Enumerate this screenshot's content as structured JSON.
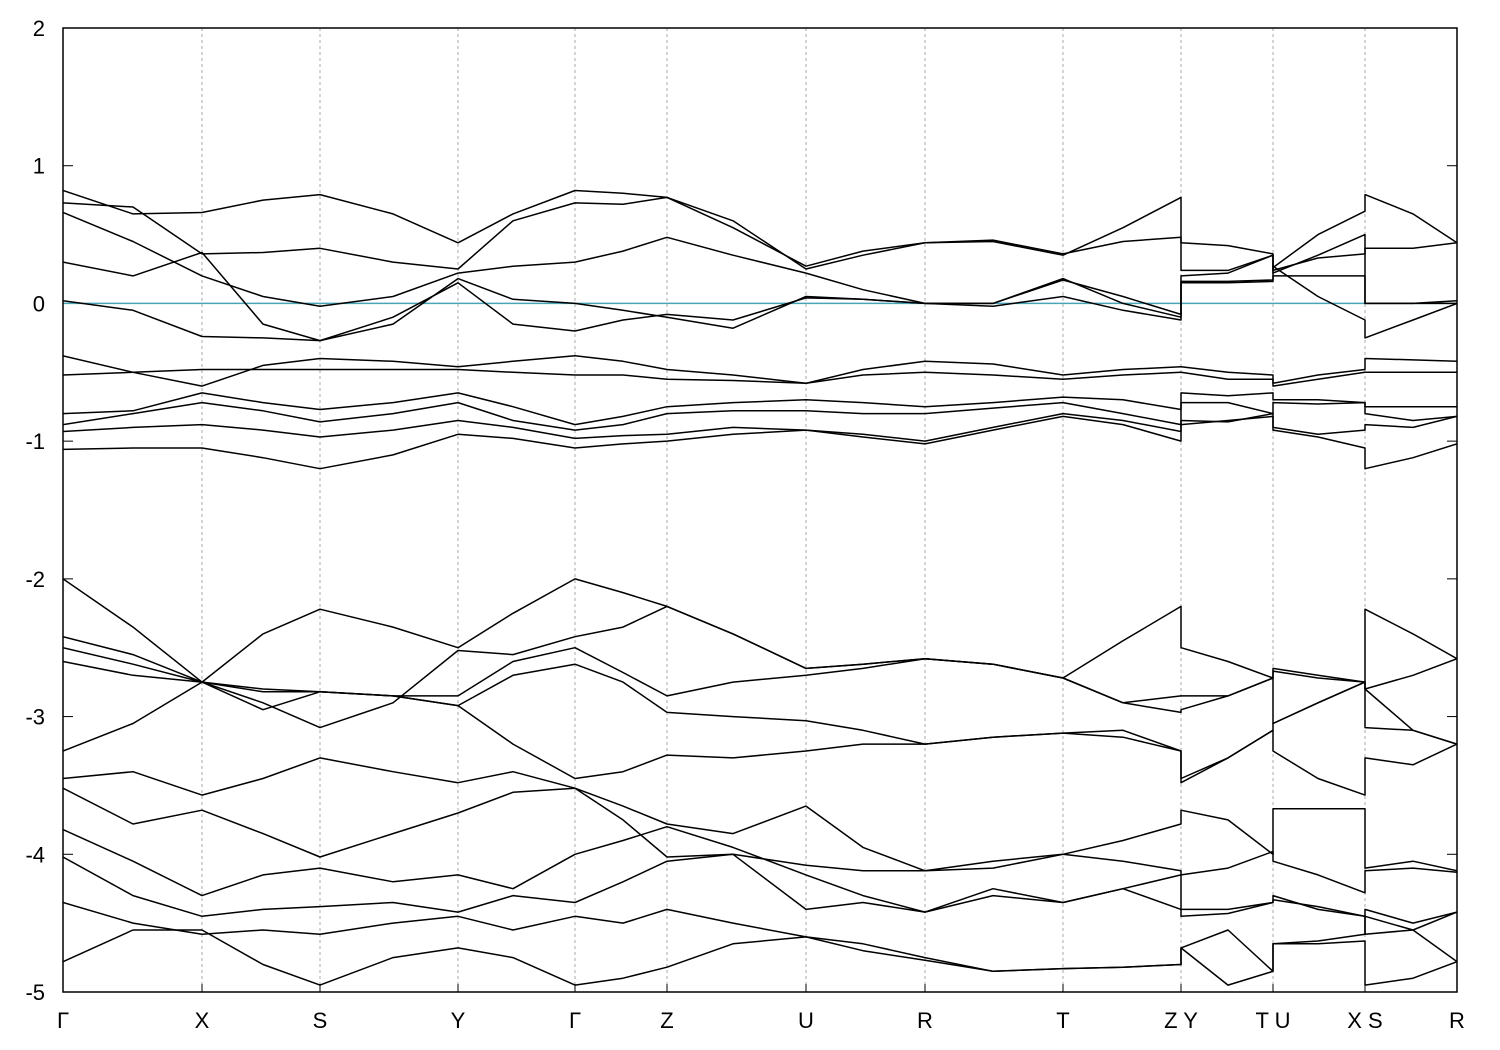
{
  "chart_data": {
    "type": "line",
    "color": "#000000",
    "grid": true,
    "hline": {
      "value": 0,
      "color": "#4aa3b8"
    },
    "xlim": [
      0,
      13.94
    ],
    "xticks": [
      {
        "value": 0,
        "label": "Γ"
      },
      {
        "value": 1.39,
        "label": "X"
      },
      {
        "value": 2.57,
        "label": "S"
      },
      {
        "value": 3.95,
        "label": "Y"
      },
      {
        "value": 5.12,
        "label": "Γ"
      },
      {
        "value": 6.04,
        "label": "Z"
      },
      {
        "value": 7.43,
        "label": "U"
      },
      {
        "value": 8.62,
        "label": "R"
      },
      {
        "value": 10.0,
        "label": "T"
      },
      {
        "value": 11.18,
        "label": "Z Y"
      },
      {
        "value": 12.1,
        "label": "T U"
      },
      {
        "value": 13.02,
        "label": "X S"
      },
      {
        "value": 13.94,
        "label": "R"
      }
    ],
    "ylim": [
      -5,
      2
    ],
    "yticks": [
      -5,
      -4,
      -3,
      -2,
      -1,
      0,
      1,
      2
    ],
    "x": [
      0,
      0.7,
      1.39,
      2.0,
      2.57,
      3.3,
      3.95,
      4.5,
      5.12,
      5.6,
      6.04,
      6.7,
      7.43,
      8.0,
      8.62,
      9.3,
      10.0,
      10.6,
      11.18,
      11.18,
      11.65,
      12.1,
      12.1,
      12.55,
      13.02,
      13.02,
      13.5,
      13.94
    ],
    "series": [
      {
        "values": [
          0.82,
          0.65,
          0.66,
          0.75,
          0.79,
          0.65,
          0.44,
          0.65,
          0.82,
          0.8,
          0.77,
          0.55,
          0.27,
          0.38,
          0.44,
          0.45,
          0.35,
          0.55,
          0.77,
          0.44,
          0.42,
          0.36,
          0.26,
          0.5,
          0.67,
          0.79,
          0.65,
          0.44
        ]
      },
      {
        "values": [
          0.73,
          0.7,
          0.36,
          0.37,
          0.4,
          0.3,
          0.25,
          0.6,
          0.73,
          0.72,
          0.77,
          0.6,
          0.25,
          0.35,
          0.44,
          0.46,
          0.36,
          0.45,
          0.48,
          0.24,
          0.24,
          0.35,
          0.24,
          0.33,
          0.36,
          0.4,
          0.4,
          0.44
        ]
      },
      {
        "values": [
          0.66,
          0.45,
          0.2,
          0.05,
          -0.02,
          0.05,
          0.22,
          0.27,
          0.3,
          0.38,
          0.48,
          0.35,
          0.22,
          0.1,
          0.0,
          0.0,
          0.17,
          0.05,
          -0.08,
          0.16,
          0.16,
          0.17,
          0.2,
          0.2,
          0.2,
          0.0,
          0.0,
          0.02
        ]
      },
      {
        "values": [
          0.3,
          0.2,
          0.37,
          -0.15,
          -0.27,
          -0.15,
          0.18,
          0.03,
          0.0,
          -0.05,
          -0.1,
          -0.18,
          0.05,
          0.03,
          0.0,
          -0.02,
          0.05,
          -0.05,
          -0.12,
          0.15,
          0.15,
          0.16,
          0.27,
          0.05,
          -0.12,
          -0.25,
          -0.12,
          0.0
        ]
      },
      {
        "values": [
          0.02,
          -0.05,
          -0.24,
          -0.25,
          -0.27,
          -0.1,
          0.15,
          -0.15,
          -0.2,
          -0.12,
          -0.08,
          -0.12,
          0.04,
          0.03,
          0.0,
          0.0,
          0.18,
          0.0,
          -0.1,
          0.2,
          0.22,
          0.35,
          0.22,
          0.35,
          0.5,
          0.0,
          0.0,
          0.0
        ]
      },
      {
        "values": [
          -0.38,
          -0.5,
          -0.6,
          -0.45,
          -0.4,
          -0.42,
          -0.46,
          -0.42,
          -0.38,
          -0.42,
          -0.48,
          -0.52,
          -0.58,
          -0.48,
          -0.42,
          -0.44,
          -0.52,
          -0.48,
          -0.46,
          -0.46,
          -0.5,
          -0.52,
          -0.58,
          -0.52,
          -0.48,
          -0.4,
          -0.41,
          -0.42
        ]
      },
      {
        "values": [
          -0.52,
          -0.5,
          -0.48,
          -0.48,
          -0.48,
          -0.48,
          -0.48,
          -0.5,
          -0.52,
          -0.52,
          -0.55,
          -0.56,
          -0.58,
          -0.52,
          -0.5,
          -0.52,
          -0.55,
          -0.52,
          -0.5,
          -0.5,
          -0.55,
          -0.55,
          -0.6,
          -0.55,
          -0.5,
          -0.5,
          -0.5,
          -0.5
        ]
      },
      {
        "values": [
          -0.8,
          -0.78,
          -0.65,
          -0.72,
          -0.77,
          -0.72,
          -0.65,
          -0.75,
          -0.88,
          -0.82,
          -0.75,
          -0.72,
          -0.7,
          -0.72,
          -0.75,
          -0.72,
          -0.68,
          -0.7,
          -0.77,
          -0.65,
          -0.67,
          -0.65,
          -0.7,
          -0.7,
          -0.72,
          -0.75,
          -0.75,
          -0.75
        ]
      },
      {
        "values": [
          -0.88,
          -0.8,
          -0.72,
          -0.78,
          -0.86,
          -0.8,
          -0.72,
          -0.85,
          -0.92,
          -0.88,
          -0.8,
          -0.78,
          -0.78,
          -0.8,
          -0.8,
          -0.76,
          -0.72,
          -0.8,
          -0.88,
          -0.72,
          -0.72,
          -0.8,
          -0.72,
          -0.73,
          -0.72,
          -0.8,
          -0.85,
          -0.82
        ]
      },
      {
        "values": [
          -0.93,
          -0.9,
          -0.88,
          -0.92,
          -0.97,
          -0.92,
          -0.85,
          -0.9,
          -0.98,
          -0.96,
          -0.95,
          -0.9,
          -0.92,
          -0.95,
          -1.0,
          -0.9,
          -0.8,
          -0.85,
          -0.93,
          -0.88,
          -0.85,
          -0.82,
          -0.9,
          -0.95,
          -0.92,
          -0.88,
          -0.9,
          -0.82
        ]
      },
      {
        "values": [
          -1.06,
          -1.05,
          -1.05,
          -1.12,
          -1.2,
          -1.1,
          -0.95,
          -0.98,
          -1.05,
          -1.02,
          -1.0,
          -0.95,
          -0.92,
          -0.97,
          -1.02,
          -0.92,
          -0.82,
          -0.88,
          -1.0,
          -0.85,
          -0.86,
          -0.8,
          -0.92,
          -0.97,
          -1.05,
          -1.2,
          -1.12,
          -1.02
        ]
      },
      {
        "values": [
          -2.0,
          -2.35,
          -2.75,
          -2.4,
          -2.22,
          -2.35,
          -2.5,
          -2.25,
          -2.0,
          -2.1,
          -2.2,
          -2.4,
          -2.65,
          -2.62,
          -2.58,
          -2.62,
          -2.72,
          -2.45,
          -2.2,
          -2.5,
          -2.6,
          -2.72,
          -2.65,
          -2.7,
          -2.75,
          -2.22,
          -2.4,
          -2.58
        ]
      },
      {
        "values": [
          -2.42,
          -2.55,
          -2.75,
          -2.9,
          -3.08,
          -2.9,
          -2.52,
          -2.55,
          -2.42,
          -2.35,
          -2.2,
          -2.4,
          -2.65,
          -2.62,
          -2.58,
          -2.62,
          -2.72,
          -2.9,
          -2.85,
          -2.85,
          -2.85,
          -2.72,
          -2.67,
          -2.72,
          -2.75,
          -2.8,
          -2.7,
          -2.58
        ]
      },
      {
        "values": [
          -2.5,
          -2.62,
          -2.75,
          -2.8,
          -2.82,
          -2.85,
          -2.85,
          -2.6,
          -2.5,
          -2.68,
          -2.85,
          -2.75,
          -2.7,
          -2.65,
          -2.58,
          -2.62,
          -2.72,
          -2.9,
          -2.97,
          -2.95,
          -2.85,
          -2.72,
          -3.05,
          -2.9,
          -2.75,
          -2.8,
          -3.1,
          -3.2
        ]
      },
      {
        "values": [
          -2.6,
          -2.7,
          -2.75,
          -2.95,
          -2.82,
          -2.85,
          -2.92,
          -2.7,
          -2.62,
          -2.75,
          -2.97,
          -3.0,
          -3.03,
          -3.1,
          -3.2,
          -3.15,
          -3.12,
          -3.15,
          -3.25,
          -3.45,
          -3.3,
          -3.1,
          -3.05,
          -2.9,
          -2.75,
          -3.08,
          -3.1,
          -3.2
        ]
      },
      {
        "values": [
          -3.25,
          -3.05,
          -2.75,
          -2.82,
          -2.82,
          -2.85,
          -2.92,
          -3.2,
          -3.45,
          -3.4,
          -3.28,
          -3.3,
          -3.25,
          -3.2,
          -3.2,
          -3.15,
          -3.12,
          -3.1,
          -3.25,
          -3.48,
          -3.3,
          -3.1,
          -3.25,
          -3.45,
          -3.57,
          -3.3,
          -3.35,
          -3.2
        ]
      },
      {
        "values": [
          -3.45,
          -3.4,
          -3.57,
          -3.45,
          -3.3,
          -3.4,
          -3.48,
          -3.4,
          -3.52,
          -3.65,
          -3.78,
          -3.85,
          -3.65,
          -3.95,
          -4.12,
          -4.05,
          -4.0,
          -3.9,
          -3.78,
          -3.68,
          -3.75,
          -4.0,
          -3.67,
          -3.67,
          -3.67,
          -4.1,
          -4.05,
          -4.12
        ]
      },
      {
        "values": [
          -3.52,
          -3.78,
          -3.68,
          -3.85,
          -4.02,
          -3.85,
          -3.7,
          -3.55,
          -3.52,
          -3.75,
          -4.02,
          -4.0,
          -4.08,
          -4.12,
          -4.12,
          -4.1,
          -4.0,
          -4.05,
          -4.12,
          -4.15,
          -4.1,
          -3.98,
          -4.05,
          -4.15,
          -4.28,
          -4.12,
          -4.1,
          -4.13
        ]
      },
      {
        "values": [
          -3.82,
          -4.05,
          -4.3,
          -4.15,
          -4.1,
          -4.2,
          -4.15,
          -4.25,
          -4.0,
          -3.9,
          -3.8,
          -3.95,
          -4.15,
          -4.3,
          -4.42,
          -4.3,
          -4.35,
          -4.25,
          -4.15,
          -4.4,
          -4.4,
          -4.35,
          -4.3,
          -4.4,
          -4.45,
          -4.4,
          -4.5,
          -4.42
        ]
      },
      {
        "values": [
          -4.02,
          -4.3,
          -4.45,
          -4.4,
          -4.38,
          -4.35,
          -4.42,
          -4.3,
          -4.35,
          -4.2,
          -4.05,
          -4.0,
          -4.4,
          -4.35,
          -4.42,
          -4.25,
          -4.35,
          -4.25,
          -4.4,
          -4.45,
          -4.43,
          -4.35,
          -4.33,
          -4.38,
          -4.45,
          -4.58,
          -4.55,
          -4.42
        ]
      },
      {
        "values": [
          -4.35,
          -4.5,
          -4.58,
          -4.55,
          -4.58,
          -4.5,
          -4.45,
          -4.55,
          -4.45,
          -4.5,
          -4.4,
          -4.5,
          -4.6,
          -4.65,
          -4.75,
          -4.85,
          -4.83,
          -4.82,
          -4.8,
          -4.68,
          -4.55,
          -4.85,
          -4.65,
          -4.63,
          -4.58,
          -4.45,
          -4.55,
          -4.78
        ]
      },
      {
        "values": [
          -4.78,
          -4.55,
          -4.55,
          -4.8,
          -4.95,
          -4.75,
          -4.68,
          -4.75,
          -4.95,
          -4.9,
          -4.82,
          -4.65,
          -4.6,
          -4.7,
          -4.77,
          -4.85,
          -4.83,
          -4.82,
          -4.8,
          -4.68,
          -4.95,
          -4.85,
          -4.65,
          -4.65,
          -4.63,
          -4.95,
          -4.9,
          -4.78
        ]
      }
    ]
  }
}
